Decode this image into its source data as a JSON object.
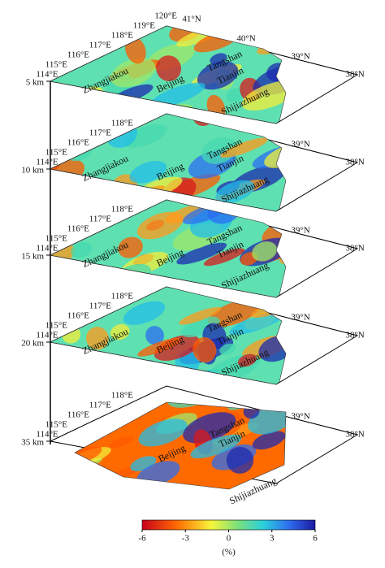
{
  "slices": [
    {
      "depth": "5 km",
      "lon_labels": [
        "114°E",
        "115°E",
        "116°E",
        "117°E",
        "118°E",
        "119°E",
        "120°E"
      ],
      "lat_labels": [
        "41°N",
        "40°N",
        "39°N",
        "38°N"
      ],
      "cities": [
        "Zhangjiakou",
        "Beijing",
        "Tangshan",
        "Tianjin",
        "Shijiazhuang"
      ]
    },
    {
      "depth": "10 km",
      "lon_labels": [
        "114°E",
        "115°E",
        "116°E",
        "117°E",
        "118°E"
      ],
      "lat_labels": [
        "39°N",
        "38°N"
      ],
      "cities": [
        "Zhangjiakou",
        "Beijing",
        "Tangshan",
        "Tianjin",
        "Shijiazhuang"
      ]
    },
    {
      "depth": "15 km",
      "lon_labels": [
        "114°E",
        "115°E",
        "116°E",
        "117°E",
        "118°E"
      ],
      "lat_labels": [
        "39°N",
        "38°N"
      ],
      "cities": [
        "Zhangjiakou",
        "Beijing",
        "Tangshan",
        "Tianjin",
        "Shijiazhuang"
      ]
    },
    {
      "depth": "20 km",
      "lon_labels": [
        "114°E",
        "115°E",
        "116°E",
        "117°E",
        "118°E"
      ],
      "lat_labels": [
        "39°N",
        "38°N"
      ],
      "cities": [
        "Zhangjiakou",
        "Beijing",
        "Tangshan",
        "Tianjin",
        "Shijiazhuang"
      ]
    },
    {
      "depth": "35 km",
      "lon_labels": [
        "114°E",
        "115°E",
        "116°E",
        "117°E",
        "118°E"
      ],
      "lat_labels": [
        "39°N",
        "38°N"
      ],
      "cities": [
        "Beijing",
        "Tangshan",
        "Tianjin",
        "Shijiazhuang"
      ]
    }
  ],
  "colorbar": {
    "lim": [
      -6,
      6
    ],
    "ticks": [
      -6,
      -3,
      0,
      3,
      6
    ],
    "unit": "(%)"
  }
}
